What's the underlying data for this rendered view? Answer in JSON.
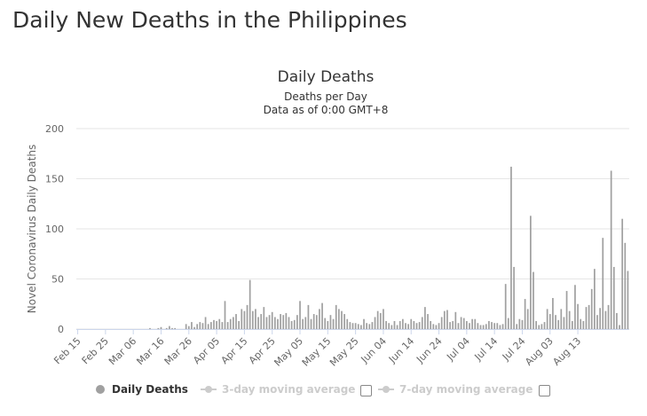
{
  "page": {
    "title": "Daily New Deaths in the Philippines"
  },
  "chart_data": {
    "type": "bar",
    "title": "Daily Deaths",
    "subtitle": "Deaths per Day",
    "subtitle2": "Data as of 0:00 GMT+8",
    "ylabel": "Novel Coronavirus Daily Deaths",
    "xlabel": "",
    "ylim": [
      0,
      200
    ],
    "yticks": [
      0,
      50,
      100,
      150,
      200
    ],
    "xtick_labels": [
      "Feb 15",
      "Feb 25",
      "Mar 06",
      "Mar 16",
      "Mar 26",
      "Apr 05",
      "Apr 15",
      "Apr 25",
      "May 05",
      "May 15",
      "May 25",
      "Jun 04",
      "Jun 14",
      "Jun 24",
      "Jul 04",
      "Jul 14",
      "Jul 24",
      "Aug 03",
      "Aug 13"
    ],
    "grid": true,
    "legend_position": "bottom",
    "bar_color": "#a0a0a0",
    "start_date": "2020-02-15",
    "series": [
      {
        "name": "Daily Deaths",
        "values": [
          0,
          0,
          0,
          0,
          0,
          0,
          0,
          0,
          0,
          0,
          0,
          0,
          0,
          0,
          0,
          0,
          0,
          0,
          0,
          0,
          0,
          0,
          0,
          0,
          0,
          0,
          1,
          0,
          0,
          1,
          2,
          0,
          1,
          3,
          1,
          1,
          0,
          0,
          0,
          5,
          3,
          7,
          2,
          5,
          7,
          6,
          12,
          5,
          7,
          9,
          8,
          10,
          7,
          28,
          7,
          10,
          12,
          15,
          8,
          20,
          18,
          24,
          49,
          18,
          20,
          12,
          15,
          22,
          12,
          14,
          17,
          12,
          10,
          15,
          14,
          16,
          12,
          8,
          9,
          14,
          28,
          10,
          12,
          24,
          10,
          15,
          14,
          20,
          26,
          11,
          8,
          14,
          10,
          24,
          20,
          18,
          15,
          10,
          7,
          6,
          6,
          5,
          4,
          10,
          6,
          5,
          7,
          12,
          18,
          16,
          20,
          8,
          6,
          4,
          8,
          4,
          8,
          10,
          6,
          5,
          10,
          8,
          6,
          7,
          12,
          22,
          15,
          8,
          5,
          4,
          6,
          12,
          18,
          19,
          7,
          8,
          17,
          6,
          12,
          11,
          8,
          6,
          10,
          10,
          6,
          4,
          4,
          5,
          8,
          7,
          6,
          6,
          4,
          5,
          45,
          11,
          162,
          62,
          5,
          10,
          9,
          30,
          20,
          113,
          57,
          8,
          4,
          5,
          7,
          20,
          15,
          31,
          14,
          9,
          20,
          12,
          38,
          18,
          8,
          44,
          25,
          10,
          8,
          22,
          24,
          40,
          60,
          14,
          21,
          91,
          18,
          24,
          158,
          62,
          16,
          4,
          110,
          86,
          58
        ]
      },
      {
        "name": "3-day moving average",
        "visible": false
      },
      {
        "name": "7-day moving average",
        "visible": false
      }
    ]
  }
}
